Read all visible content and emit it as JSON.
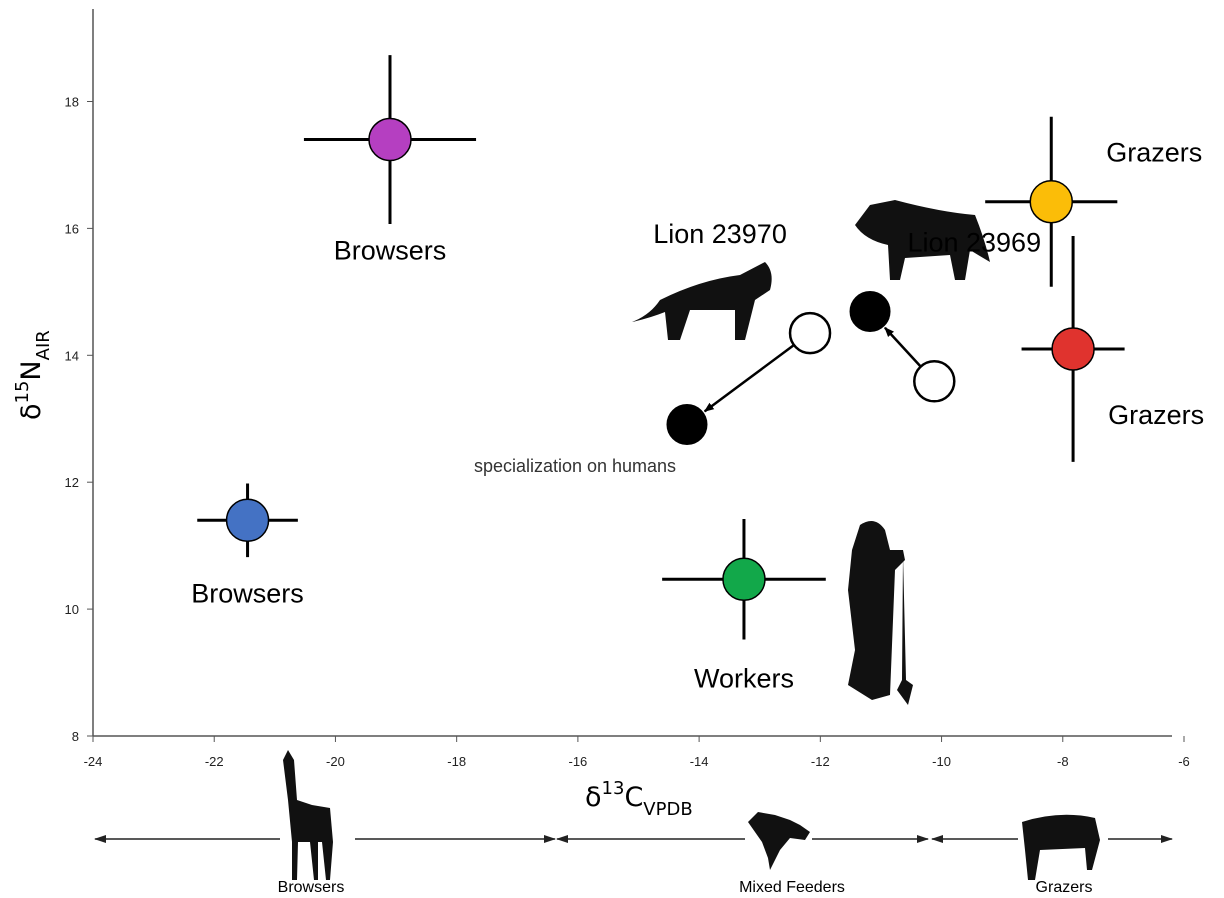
{
  "chart_data": {
    "type": "scatter",
    "x_label": {
      "prefix": "δ",
      "sup": "13",
      "main": "C",
      "sub": "VPDB"
    },
    "y_label": {
      "prefix": "δ",
      "sup": "15",
      "main": "N",
      "sub": "AIR"
    },
    "xlim": [
      -24,
      -6
    ],
    "xticks": [
      -24,
      -22,
      -20,
      -18,
      -16,
      -14,
      -12,
      -10,
      -8,
      -6
    ],
    "ylim": [
      8,
      19.3
    ],
    "yticks": [
      8,
      10,
      12,
      14,
      16,
      18
    ],
    "series": [
      {
        "name": "Browsers",
        "color": "#b53fc1",
        "x": -19.1,
        "y": 17.4,
        "xerr": 1.42,
        "yerr": 1.33
      },
      {
        "name": "Browsers",
        "color": "#4472c4",
        "x": -21.45,
        "y": 11.4,
        "xerr": 0.83,
        "yerr": 0.58
      },
      {
        "name": "Workers",
        "color": "#12a84a",
        "x": -13.26,
        "y": 10.47,
        "xerr": 1.35,
        "yerr": 0.95
      },
      {
        "name": "Grazers",
        "color": "#fbbd08",
        "x": -8.19,
        "y": 16.42,
        "xerr": 1.09,
        "yerr": 1.34
      },
      {
        "name": "Grazers",
        "color": "#e0332e",
        "x": -7.83,
        "y": 14.1,
        "xerr": 0.85,
        "yerr": 1.78
      }
    ],
    "lions": [
      {
        "name": "Lion 23970",
        "x": [
          -12.17,
          -14.2
        ],
        "y": [
          14.35,
          12.91
        ]
      },
      {
        "name": "Lion 23969",
        "x": [
          -10.12,
          -11.18
        ],
        "y": [
          13.59,
          14.69
        ]
      }
    ],
    "annotation": "specialization on humans",
    "diet_scale": [
      "Browsers",
      "Mixed Feeders",
      "Grazers"
    ]
  }
}
